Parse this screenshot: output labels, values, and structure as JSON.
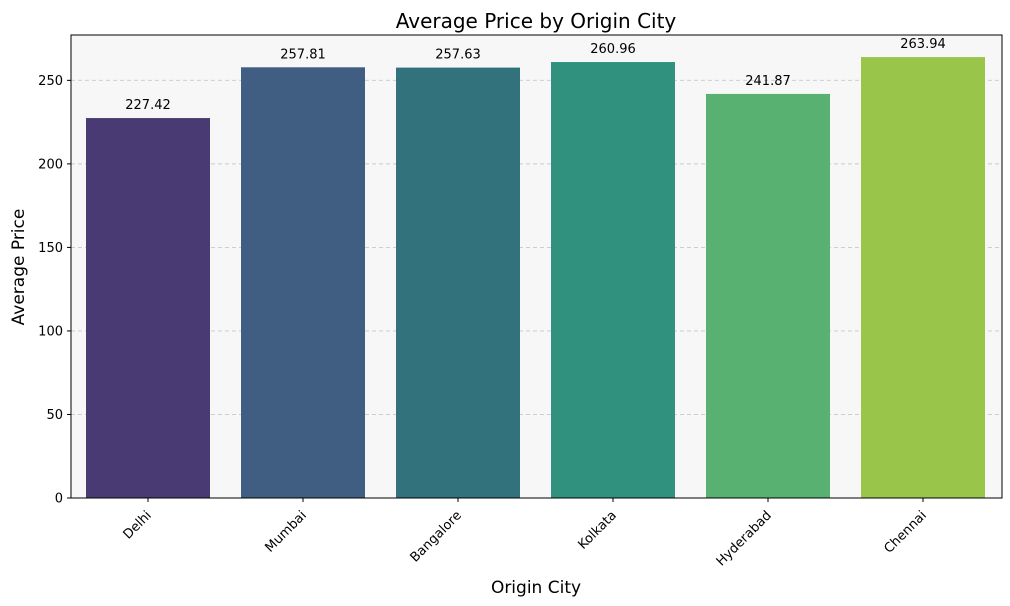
{
  "chart_data": {
    "type": "bar",
    "title": "Average Price by Origin City",
    "xlabel": "Origin City",
    "ylabel": "Average Price",
    "categories": [
      "Delhi",
      "Mumbai",
      "Bangalore",
      "Kolkata",
      "Hyderabad",
      "Chennai"
    ],
    "values": [
      227.42,
      257.81,
      257.63,
      260.96,
      241.87,
      263.94
    ],
    "value_labels": [
      "227.42",
      "257.81",
      "257.63",
      "260.96",
      "241.87",
      "263.94"
    ],
    "colors": [
      "#4a3a73",
      "#405e82",
      "#32727d",
      "#30917e",
      "#58b071",
      "#9ac54b"
    ],
    "ylim": [
      0,
      277.14
    ],
    "yticks": [
      0,
      50,
      100,
      150,
      200,
      250
    ],
    "grid": "horizontal dashed",
    "background": "#f7f7f7"
  }
}
